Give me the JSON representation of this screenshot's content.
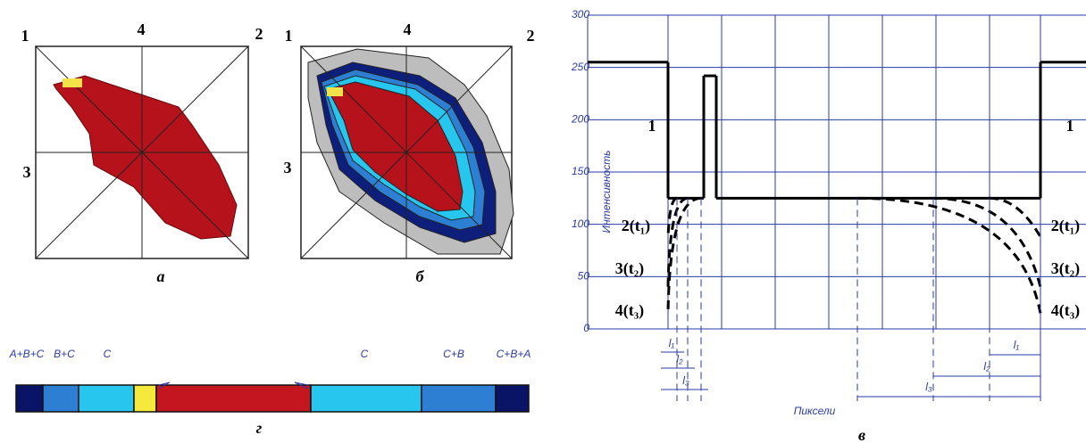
{
  "panel_a": {
    "corner_labels": [
      "1",
      "4",
      "2",
      "3"
    ],
    "caption": "а"
  },
  "panel_b": {
    "corner_labels": [
      "1",
      "4",
      "2",
      "3"
    ],
    "caption": "б"
  },
  "panel_g": {
    "segment_labels": [
      "A+B+C",
      "B+C",
      "C",
      "C",
      "C+B",
      "C+B+A"
    ],
    "caption": "г"
  },
  "chart_data": {
    "type": "line",
    "y_label": "Интенсивность",
    "x_label": "Пиксели",
    "caption": "в",
    "ylim": [
      0,
      300
    ],
    "yticks": [
      0,
      50,
      100,
      150,
      200,
      250,
      300
    ],
    "profile": [
      255,
      125,
      242,
      125,
      255
    ],
    "decay_ends": [
      88,
      40,
      15
    ],
    "curve_labels": {
      "left": [
        "1",
        "2(t₁)",
        "3(t₂)",
        "4(t₃)"
      ],
      "right": [
        "1",
        "2(t₁)",
        "3(t₂)",
        "4(t₃)"
      ]
    },
    "dimension_labels": {
      "left": [
        "l₁",
        "l₂",
        "l₃"
      ],
      "right": [
        "l₁",
        "l₂",
        "l₃"
      ]
    }
  }
}
